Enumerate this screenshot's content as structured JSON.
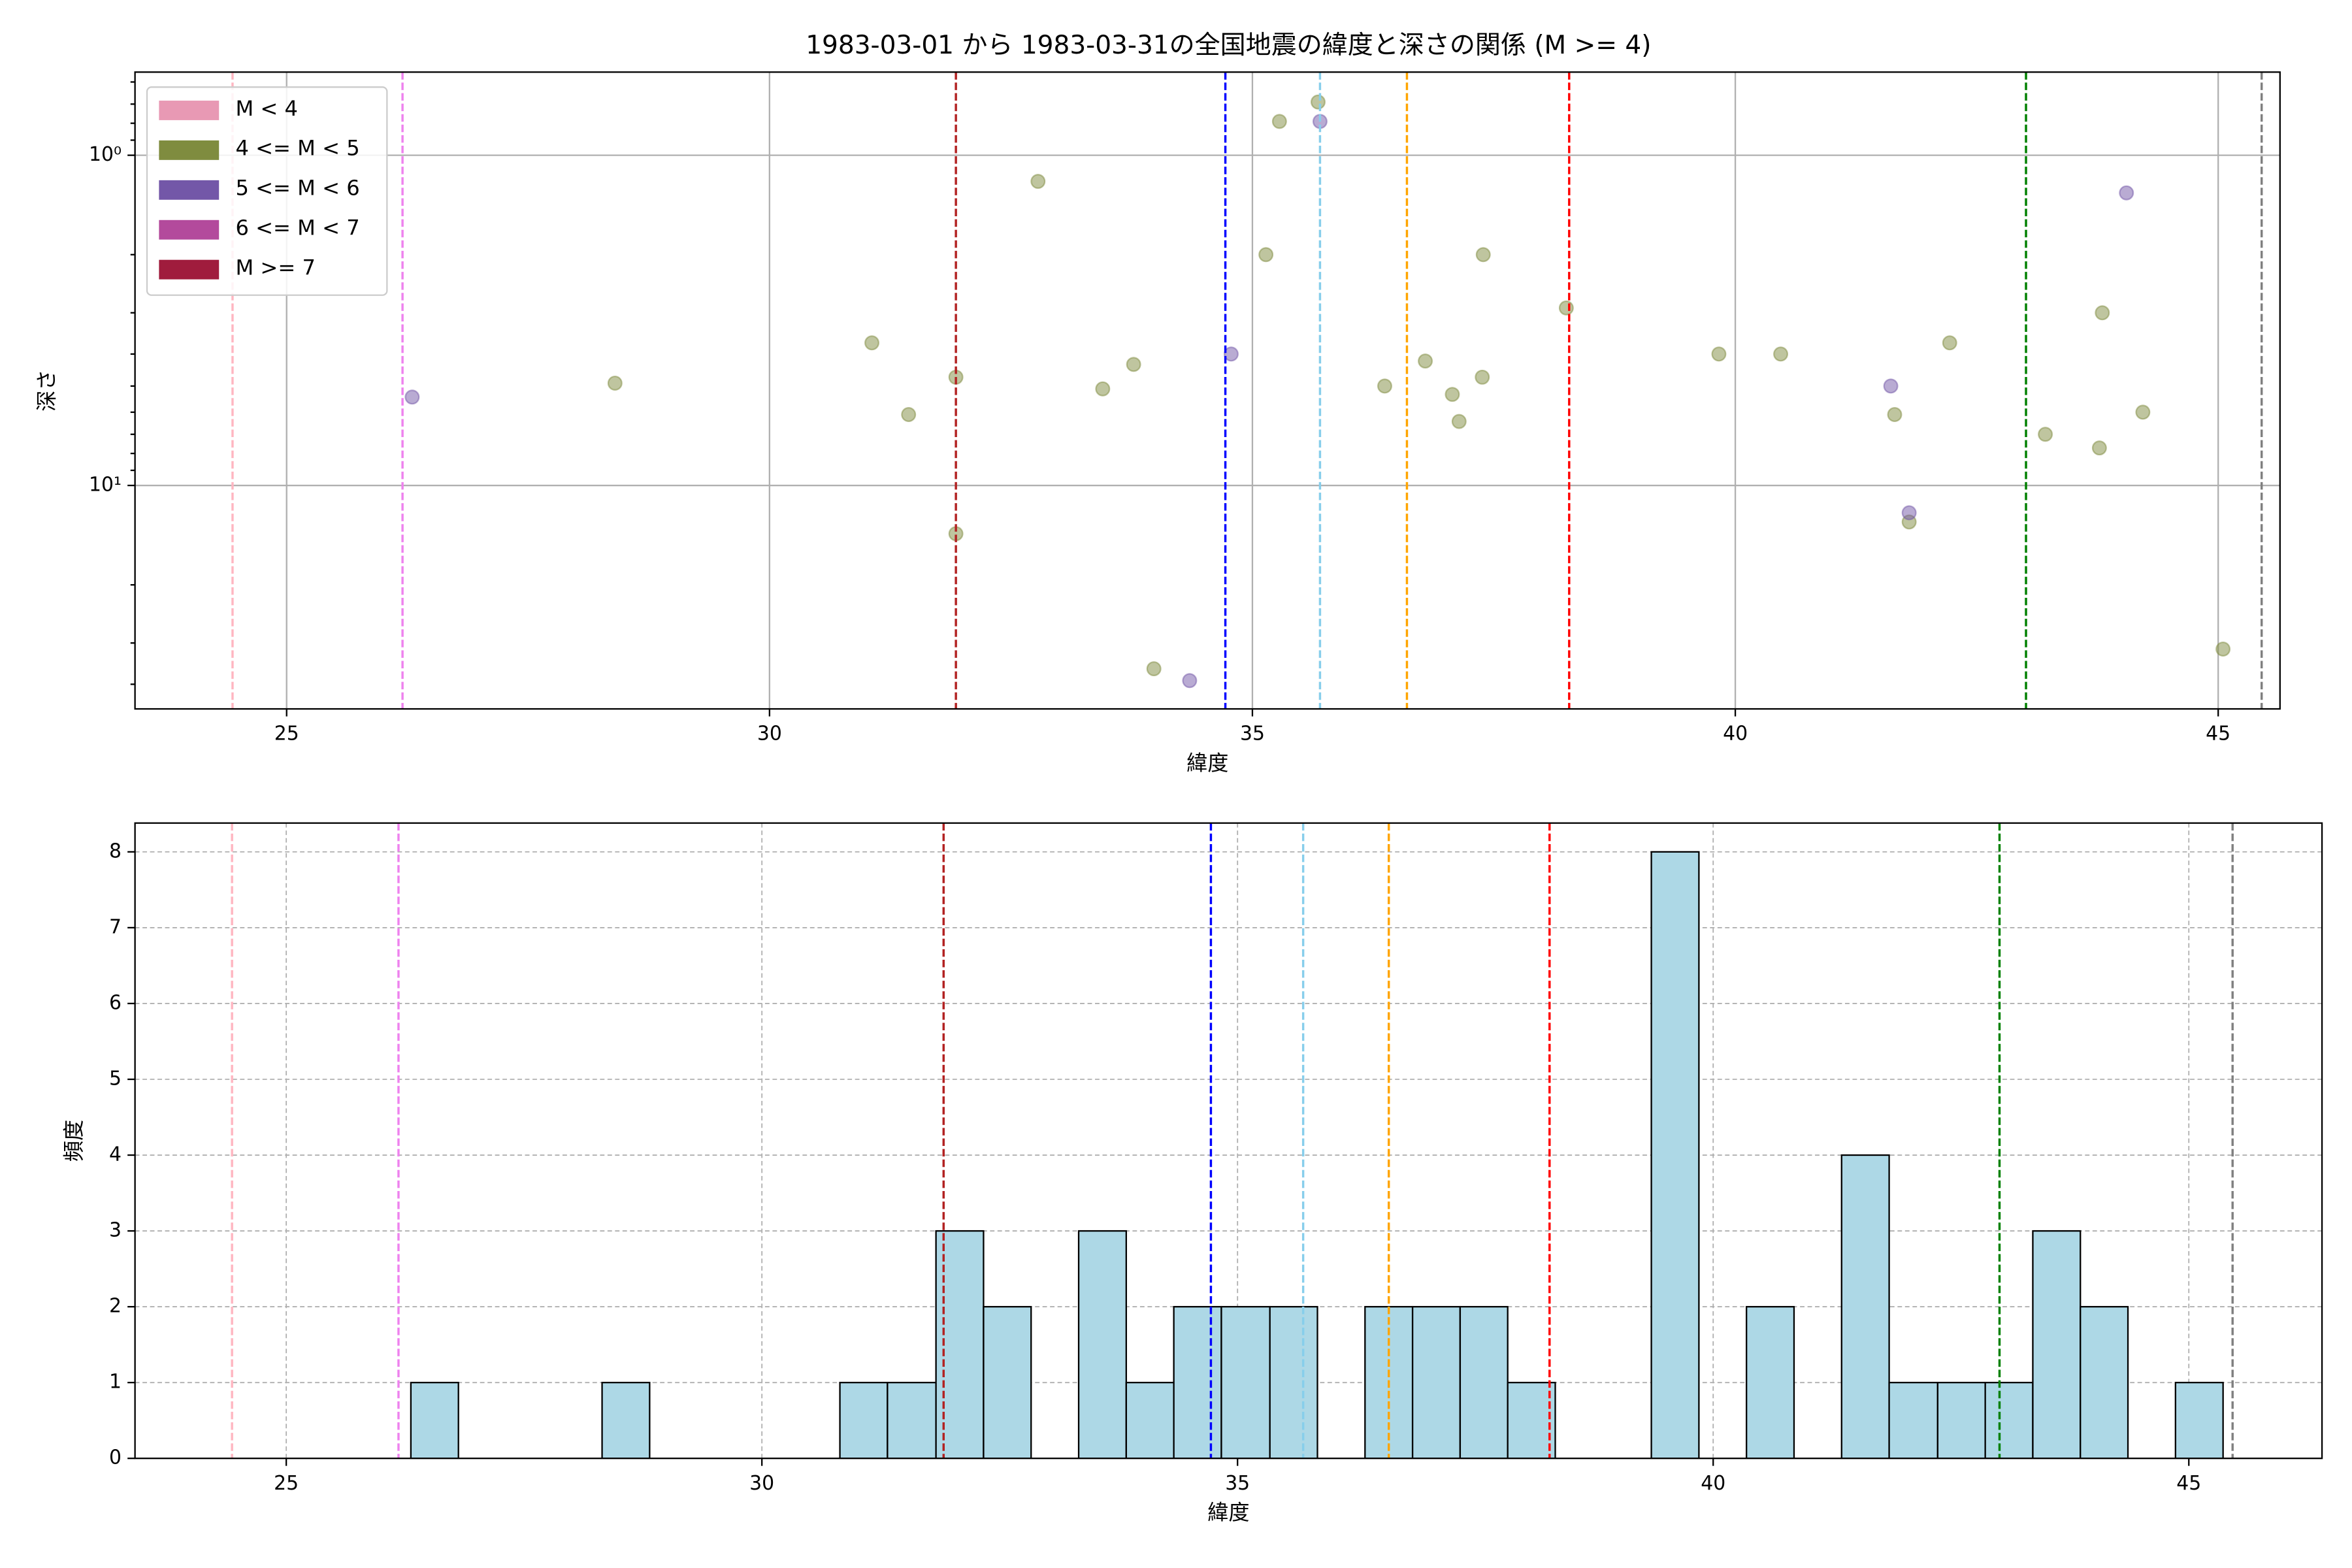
{
  "chart_data": [
    {
      "type": "scatter",
      "title": "1983-03-01 から 1983-03-31の全国地震の緯度と深さの関係 (M >= 4)",
      "xlabel": "緯度",
      "ylabel": "深さ",
      "xlim": [
        23.43,
        45.64
      ],
      "xticks": [
        25,
        30,
        35,
        40,
        45
      ],
      "ylim": [
        0.56,
        47.5
      ],
      "yinvert": true,
      "yscale": "log",
      "yticks": [
        {
          "value": 1,
          "label": "10⁰"
        },
        {
          "value": 10,
          "label": "10¹"
        }
      ],
      "yminor_ticks": [
        0.6,
        0.7,
        0.8,
        0.9,
        2,
        3,
        4,
        5,
        6,
        7,
        8,
        9,
        20,
        30,
        40
      ],
      "grid": true,
      "legend": "upper left",
      "alpha": 0.5,
      "series": [
        {
          "name": "M < 4",
          "color": "#e899b4",
          "x": [],
          "y": []
        },
        {
          "name": "4 <= M < 5",
          "color": "#7f8c3f",
          "x": [
            28.4,
            31.06,
            31.44,
            31.93,
            31.93,
            32.78,
            33.45,
            33.77,
            33.98,
            35.14,
            35.28,
            35.68,
            36.37,
            36.79,
            37.07,
            37.14,
            37.38,
            37.39,
            38.25,
            39.83,
            40.47,
            41.65,
            41.8,
            42.22,
            43.21,
            43.77,
            43.8,
            44.22,
            45.05
          ],
          "y": [
            4.9,
            3.7,
            6.1,
            4.7,
            14.0,
            1.2,
            5.1,
            4.3,
            35.9,
            2.0,
            0.79,
            0.69,
            5.0,
            4.2,
            5.3,
            6.4,
            4.7,
            2.0,
            2.9,
            4.0,
            4.0,
            6.1,
            12.9,
            3.7,
            7.0,
            7.7,
            3.0,
            6.0,
            31.3
          ]
        },
        {
          "name": "5 <= M < 6",
          "color": "#7357a8",
          "x": [
            26.3,
            34.35,
            34.78,
            35.7,
            41.61,
            41.8,
            44.05
          ],
          "y": [
            5.4,
            39,
            4.0,
            0.79,
            5.0,
            12.1,
            1.3
          ]
        },
        {
          "name": "6 <= M < 7",
          "color": "#b34a9c",
          "x": [],
          "y": []
        },
        {
          "name": "M >= 7",
          "color": "#a01c3d",
          "x": [],
          "y": []
        }
      ],
      "vlines": [
        {
          "x": 24.44,
          "color": "#ffb6c1"
        },
        {
          "x": 26.2,
          "color": "#ee82ee"
        },
        {
          "x": 31.93,
          "color": "#b22222"
        },
        {
          "x": 34.72,
          "color": "#0000ff"
        },
        {
          "x": 35.7,
          "color": "#87ceeb"
        },
        {
          "x": 36.6,
          "color": "#ffa500"
        },
        {
          "x": 38.28,
          "color": "#ff0000"
        },
        {
          "x": 43.01,
          "color": "#008000"
        },
        {
          "x": 45.45,
          "color": "#808080"
        }
      ]
    },
    {
      "type": "histogram",
      "xlabel": "緯度",
      "ylabel": "頻度",
      "xlim": [
        23.41,
        46.4
      ],
      "xticks": [
        25,
        30,
        35,
        40,
        45
      ],
      "ylim": [
        0,
        8.38
      ],
      "yticks": [
        0,
        1,
        2,
        3,
        4,
        5,
        6,
        7,
        8
      ],
      "grid": true,
      "color": "#add8e6",
      "edgecolor": "#000000",
      "bins": [
        26.31,
        26.81,
        27.31,
        27.81,
        28.32,
        28.82,
        29.32,
        29.82,
        30.32,
        30.82,
        31.32,
        31.83,
        32.33,
        32.83,
        33.33,
        33.83,
        34.33,
        34.83,
        35.34,
        35.84,
        36.34,
        36.84,
        37.34,
        37.84,
        38.34,
        38.85,
        39.35,
        39.85,
        40.35,
        40.85,
        41.35,
        41.85,
        42.36,
        42.86,
        43.36,
        43.86,
        44.36,
        44.86,
        45.36
      ],
      "counts": [
        1,
        0,
        0,
        0,
        1,
        0,
        0,
        0,
        0,
        1,
        1,
        3,
        2,
        0,
        3,
        1,
        2,
        2,
        2,
        0,
        2,
        2,
        2,
        1,
        0,
        0,
        8,
        0,
        2,
        0,
        4,
        1,
        1,
        1,
        3,
        2,
        0,
        1
      ],
      "vlines": [
        {
          "x": 24.43,
          "color": "#ffb6c1"
        },
        {
          "x": 26.18,
          "color": "#ee82ee"
        },
        {
          "x": 31.91,
          "color": "#b22222"
        },
        {
          "x": 34.72,
          "color": "#0000ff"
        },
        {
          "x": 35.69,
          "color": "#87ceeb"
        },
        {
          "x": 36.59,
          "color": "#ffa500"
        },
        {
          "x": 38.28,
          "color": "#ff0000"
        },
        {
          "x": 43.01,
          "color": "#008000"
        },
        {
          "x": 45.46,
          "color": "#808080"
        }
      ]
    }
  ]
}
